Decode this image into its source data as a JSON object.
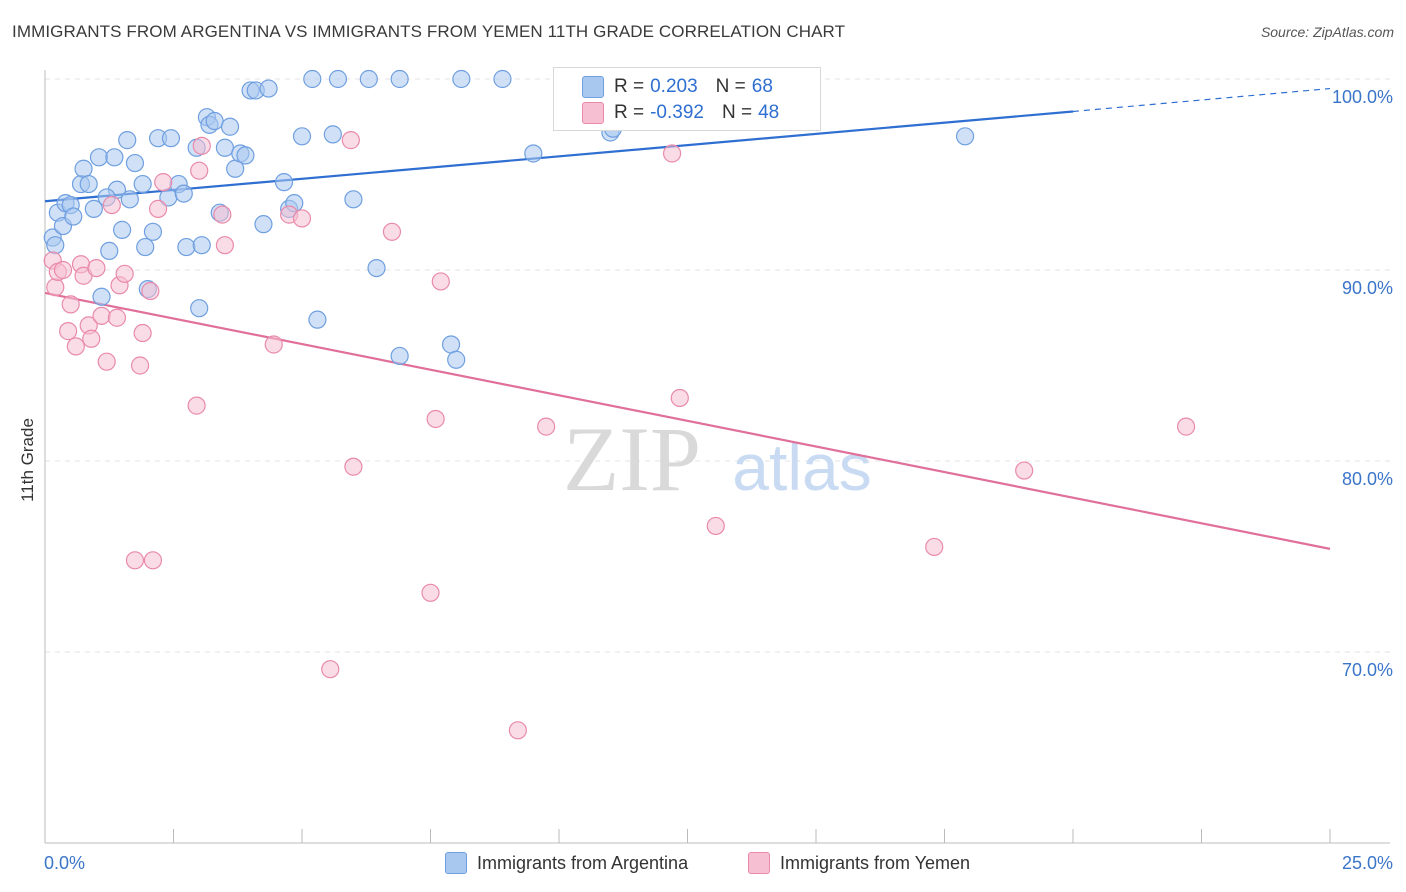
{
  "title": "IMMIGRANTS FROM ARGENTINA VS IMMIGRANTS FROM YEMEN 11TH GRADE CORRELATION CHART",
  "source": "Source: ZipAtlas.com",
  "watermark": {
    "zip": "ZIP",
    "atlas": "atlas"
  },
  "legend": {
    "r_label": "R =",
    "n_label": "N =",
    "argentina": {
      "r": "0.203",
      "n": "68"
    },
    "yemen": {
      "r": "-0.392",
      "n": "48"
    }
  },
  "bottom_legend": {
    "argentina": "Immigrants from Argentina",
    "yemen": "Immigrants from Yemen"
  },
  "colors": {
    "blue_fill": "#a9c8f0",
    "blue_stroke": "#6f9fe0",
    "blue_line": "#2f6fd1",
    "pink_fill": "#f6c0d2",
    "pink_stroke": "#e98aab",
    "pink_line": "#e0709a",
    "axis_text": "#3b75c9",
    "grid": "#e3e3e3"
  },
  "chart_data": {
    "type": "scatter",
    "title": "IMMIGRANTS FROM ARGENTINA VS IMMIGRANTS FROM YEMEN 11TH GRADE CORRELATION CHART",
    "xlabel": "",
    "ylabel": "11th Grade",
    "xlim": [
      0,
      25
    ],
    "ylim": [
      60.5,
      101.5
    ],
    "x_tick_labels": [
      "0.0%",
      "25.0%"
    ],
    "y_ticks": [
      70,
      80,
      90,
      100
    ],
    "y_tick_labels": [
      "70.0%",
      "80.0%",
      "90.0%",
      "100.0%"
    ],
    "grid": true,
    "series": [
      {
        "name": "Immigrants from Argentina",
        "color": "blue",
        "trend": {
          "x": [
            0,
            20
          ],
          "y": [
            93.6,
            98.3
          ],
          "dashed_to": [
            25,
            99.5
          ]
        },
        "points": [
          [
            0.15,
            91.7
          ],
          [
            0.2,
            91.3
          ],
          [
            0.25,
            93.0
          ],
          [
            0.35,
            92.3
          ],
          [
            0.4,
            93.5
          ],
          [
            0.5,
            93.4
          ],
          [
            0.55,
            92.8
          ],
          [
            0.7,
            94.5
          ],
          [
            0.75,
            95.3
          ],
          [
            0.85,
            94.5
          ],
          [
            0.95,
            93.2
          ],
          [
            1.05,
            95.9
          ],
          [
            1.1,
            88.6
          ],
          [
            1.25,
            91.0
          ],
          [
            1.35,
            95.9
          ],
          [
            1.4,
            94.2
          ],
          [
            1.5,
            92.1
          ],
          [
            1.6,
            96.8
          ],
          [
            1.65,
            93.7
          ],
          [
            1.75,
            95.6
          ],
          [
            1.9,
            94.5
          ],
          [
            1.95,
            91.2
          ],
          [
            2.0,
            89.0
          ],
          [
            2.1,
            92.0
          ],
          [
            2.2,
            96.9
          ],
          [
            2.4,
            93.8
          ],
          [
            2.45,
            96.9
          ],
          [
            2.6,
            94.5
          ],
          [
            2.7,
            94.0
          ],
          [
            2.75,
            91.2
          ],
          [
            2.95,
            96.4
          ],
          [
            3.05,
            91.3
          ],
          [
            3.15,
            98.0
          ],
          [
            3.2,
            97.6
          ],
          [
            3.3,
            97.8
          ],
          [
            3.4,
            93.0
          ],
          [
            3.5,
            96.4
          ],
          [
            3.6,
            97.5
          ],
          [
            3.7,
            95.3
          ],
          [
            3.8,
            96.1
          ],
          [
            3.9,
            96.0
          ],
          [
            4.0,
            99.4
          ],
          [
            4.1,
            99.4
          ],
          [
            4.25,
            92.4
          ],
          [
            4.35,
            99.5
          ],
          [
            4.65,
            94.6
          ],
          [
            4.75,
            93.2
          ],
          [
            4.85,
            93.5
          ],
          [
            5.0,
            97.0
          ],
          [
            5.2,
            100.0
          ],
          [
            5.3,
            87.4
          ],
          [
            5.6,
            97.1
          ],
          [
            5.7,
            100.0
          ],
          [
            6.0,
            93.7
          ],
          [
            6.3,
            100.0
          ],
          [
            6.45,
            90.1
          ],
          [
            6.9,
            100.0
          ],
          [
            6.9,
            85.5
          ],
          [
            7.9,
            86.1
          ],
          [
            8.0,
            85.3
          ],
          [
            8.1,
            100.0
          ],
          [
            8.9,
            100.0
          ],
          [
            9.5,
            96.1
          ],
          [
            11.0,
            97.2
          ],
          [
            11.05,
            97.4
          ],
          [
            17.9,
            97.0
          ],
          [
            3.0,
            88.0
          ],
          [
            1.2,
            93.8
          ]
        ]
      },
      {
        "name": "Immigrants from Yemen",
        "color": "pink",
        "trend": {
          "x": [
            0,
            25
          ],
          "y": [
            88.8,
            75.4
          ]
        },
        "points": [
          [
            0.15,
            90.5
          ],
          [
            0.2,
            89.1
          ],
          [
            0.25,
            89.9
          ],
          [
            0.35,
            90.0
          ],
          [
            0.45,
            86.8
          ],
          [
            0.5,
            88.2
          ],
          [
            0.6,
            86.0
          ],
          [
            0.7,
            90.3
          ],
          [
            0.75,
            89.7
          ],
          [
            0.85,
            87.1
          ],
          [
            0.9,
            86.4
          ],
          [
            1.0,
            90.1
          ],
          [
            1.1,
            87.6
          ],
          [
            1.2,
            85.2
          ],
          [
            1.3,
            93.4
          ],
          [
            1.4,
            87.5
          ],
          [
            1.45,
            89.2
          ],
          [
            1.55,
            89.8
          ],
          [
            1.75,
            74.8
          ],
          [
            1.85,
            85.0
          ],
          [
            1.9,
            86.7
          ],
          [
            2.05,
            88.9
          ],
          [
            2.1,
            74.8
          ],
          [
            2.2,
            93.2
          ],
          [
            2.3,
            94.6
          ],
          [
            2.95,
            82.9
          ],
          [
            3.0,
            95.2
          ],
          [
            3.05,
            96.5
          ],
          [
            3.45,
            92.9
          ],
          [
            3.5,
            91.3
          ],
          [
            4.45,
            86.1
          ],
          [
            4.75,
            92.9
          ],
          [
            5.0,
            92.7
          ],
          [
            5.55,
            69.1
          ],
          [
            5.95,
            96.8
          ],
          [
            6.0,
            79.7
          ],
          [
            6.75,
            92.0
          ],
          [
            7.5,
            73.1
          ],
          [
            7.6,
            82.2
          ],
          [
            7.7,
            89.4
          ],
          [
            9.2,
            65.9
          ],
          [
            9.75,
            81.8
          ],
          [
            12.2,
            96.1
          ],
          [
            12.35,
            83.3
          ],
          [
            13.05,
            76.6
          ],
          [
            17.3,
            75.5
          ],
          [
            19.05,
            79.5
          ],
          [
            22.2,
            81.8
          ]
        ]
      }
    ]
  }
}
